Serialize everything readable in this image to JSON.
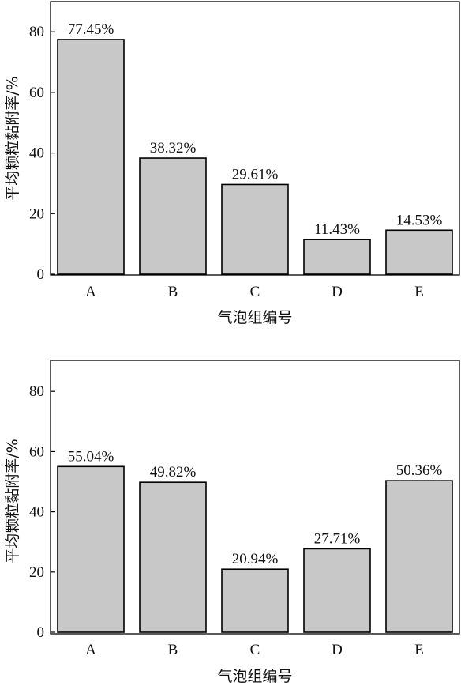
{
  "chart_data": [
    {
      "type": "bar",
      "categories": [
        "A",
        "B",
        "C",
        "D",
        "E"
      ],
      "values": [
        77.45,
        38.32,
        29.61,
        11.43,
        14.53
      ],
      "data_labels": [
        "77.45%",
        "38.32%",
        "29.61%",
        "11.43%",
        "14.53%"
      ],
      "xlabel": "气泡组编号",
      "ylabel": "平均颗粒黏附率/%",
      "ylim": [
        0,
        90
      ],
      "yticks": [
        0,
        20,
        40,
        60,
        80
      ],
      "grid": false,
      "bar_color": "#c8c8c8"
    },
    {
      "type": "bar",
      "categories": [
        "A",
        "B",
        "C",
        "D",
        "E"
      ],
      "values": [
        55.04,
        49.82,
        20.94,
        27.71,
        50.36
      ],
      "data_labels": [
        "55.04%",
        "49.82%",
        "20.94%",
        "27.71%",
        "50.36%"
      ],
      "xlabel": "气泡组编号",
      "ylabel": "平均颗粒黏附率/%",
      "ylim": [
        0,
        90
      ],
      "yticks": [
        0,
        20,
        40,
        60,
        80
      ],
      "grid": false,
      "bar_color": "#c8c8c8"
    }
  ]
}
